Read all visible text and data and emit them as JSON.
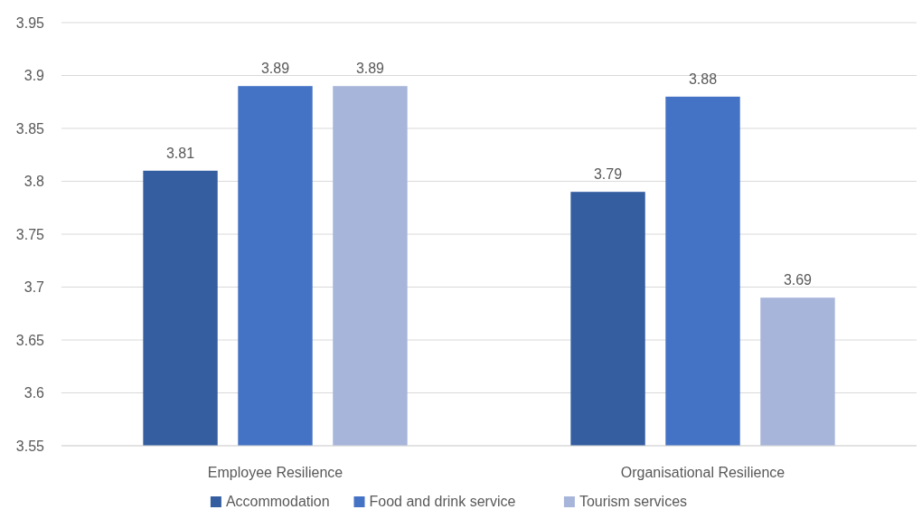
{
  "chart_data": {
    "type": "bar",
    "categories": [
      "Employee Resilience",
      "Organisational Resilience"
    ],
    "series": [
      {
        "name": "Accommodation",
        "color": "#355ea0",
        "values": [
          3.81,
          3.79
        ]
      },
      {
        "name": "Food and drink service",
        "color": "#4472c4",
        "values": [
          3.89,
          3.88
        ]
      },
      {
        "name": "Tourism services",
        "color": "#a8b5da",
        "values": [
          3.89,
          3.69
        ]
      }
    ],
    "ylim": [
      3.55,
      3.95
    ],
    "yticks": [
      3.55,
      3.6,
      3.65,
      3.7,
      3.75,
      3.8,
      3.85,
      3.9,
      3.95
    ],
    "grid": "y",
    "legend": "bottom",
    "data_labels": true
  }
}
